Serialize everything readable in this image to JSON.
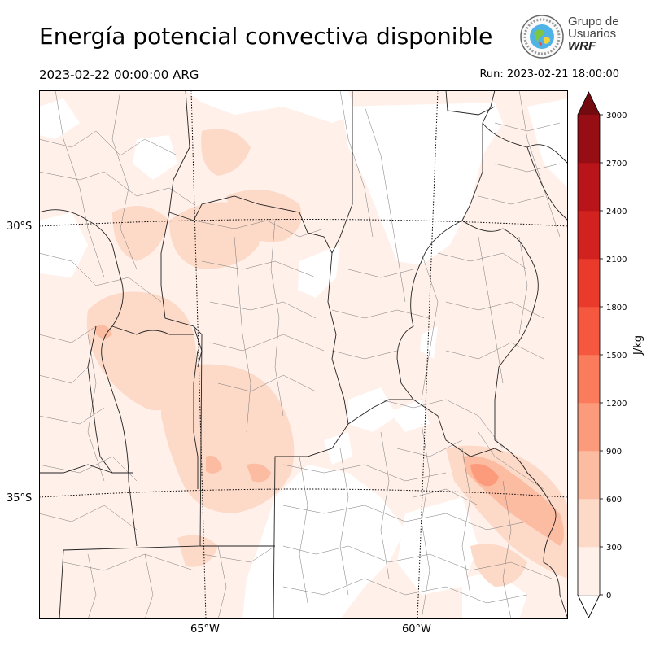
{
  "header": {
    "title": "Energía potencial convectiva disponible",
    "valid_time": "2023-02-22 00:00:00 ARG",
    "run_time": "Run: 2023-02-21 18:00:00"
  },
  "logo": {
    "line1": "Grupo de",
    "line2": "Usuarios",
    "line3": "WRF"
  },
  "map": {
    "lat_labels": [
      "30°S",
      "35°S"
    ],
    "lon_labels": [
      "65°W",
      "60°W"
    ]
  },
  "colorbar": {
    "unit": "J/kg",
    "ticks": [
      "0",
      "300",
      "600",
      "900",
      "1200",
      "1500",
      "1800",
      "2100",
      "2400",
      "2700",
      "3000"
    ],
    "colors": [
      "#fff0ea",
      "#fdd9c8",
      "#fcbca2",
      "#fc9b7c",
      "#fb7c5c",
      "#f5573f",
      "#ea3a2b",
      "#d22220",
      "#b81419",
      "#960d13",
      "#720a10"
    ]
  }
}
